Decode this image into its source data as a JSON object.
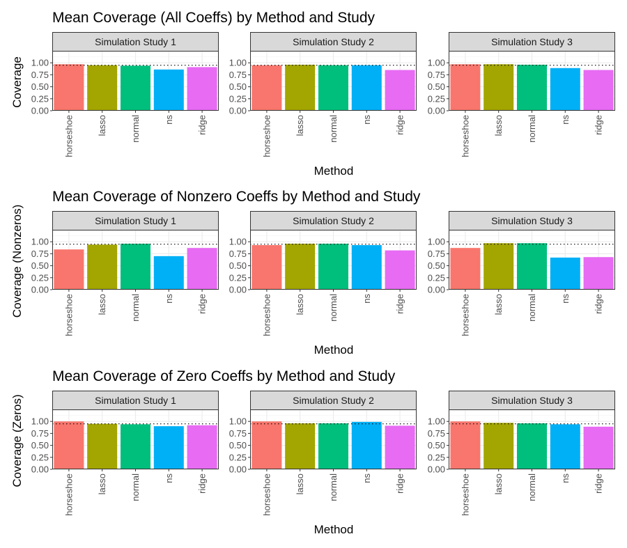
{
  "chart_data": [
    {
      "type": "bar",
      "title": "Mean Coverage (All Coeffs) by Method and Study",
      "xlabel": "Method",
      "ylabel": "Coverage",
      "ylim": [
        0,
        1.25
      ],
      "yticks": [
        "0.00",
        "0.25",
        "0.50",
        "0.75",
        "1.00"
      ],
      "reference_line": 0.95,
      "categories": [
        "horseshoe",
        "lasso",
        "normal",
        "ns",
        "ridge"
      ],
      "facets": [
        {
          "name": "Simulation Study 1",
          "values": [
            0.97,
            0.95,
            0.94,
            0.86,
            0.91
          ]
        },
        {
          "name": "Simulation Study 2",
          "values": [
            0.95,
            0.96,
            0.95,
            0.95,
            0.85
          ]
        },
        {
          "name": "Simulation Study 3",
          "values": [
            0.97,
            0.97,
            0.96,
            0.89,
            0.85
          ]
        }
      ]
    },
    {
      "type": "bar",
      "title": "Mean Coverage of Nonzero Coeffs by Method and Study",
      "xlabel": "Method",
      "ylabel": "Coverage (Nonzeros)",
      "ylim": [
        0,
        1.25
      ],
      "yticks": [
        "0.00",
        "0.25",
        "0.50",
        "0.75",
        "1.00"
      ],
      "reference_line": 0.95,
      "categories": [
        "horseshoe",
        "lasso",
        "normal",
        "ns",
        "ridge"
      ],
      "facets": [
        {
          "name": "Simulation Study 1",
          "values": [
            0.84,
            0.94,
            0.96,
            0.7,
            0.87
          ]
        },
        {
          "name": "Simulation Study 2",
          "values": [
            0.93,
            0.96,
            0.96,
            0.93,
            0.82
          ]
        },
        {
          "name": "Simulation Study 3",
          "values": [
            0.87,
            0.97,
            0.97,
            0.67,
            0.68
          ]
        }
      ]
    },
    {
      "type": "bar",
      "title": "Mean Coverage of Zero Coeffs by Method and Study",
      "xlabel": "Method",
      "ylabel": "Coverage (Zeros)",
      "ylim": [
        0,
        1.25
      ],
      "yticks": [
        "0.00",
        "0.25",
        "0.50",
        "0.75",
        "1.00"
      ],
      "reference_line": 0.95,
      "categories": [
        "horseshoe",
        "lasso",
        "normal",
        "ns",
        "ridge"
      ],
      "facets": [
        {
          "name": "Simulation Study 1",
          "values": [
            1.0,
            0.95,
            0.94,
            0.9,
            0.92
          ]
        },
        {
          "name": "Simulation Study 2",
          "values": [
            1.0,
            0.96,
            0.96,
            0.99,
            0.91
          ]
        },
        {
          "name": "Simulation Study 3",
          "values": [
            1.0,
            0.97,
            0.96,
            0.94,
            0.89
          ]
        }
      ]
    }
  ],
  "colors": {
    "horseshoe": "#F8766D",
    "lasso": "#A3A500",
    "normal": "#00BF7D",
    "ns": "#00B0F6",
    "ridge": "#E76BF3",
    "strip_fill": "#D9D9D9",
    "strip_border": "#333333",
    "panel_border": "#333333",
    "grid_major": "#EBEBEB",
    "grid_minor": "#F4F4F4",
    "tick": "#333333",
    "reference_line": "#000000"
  }
}
